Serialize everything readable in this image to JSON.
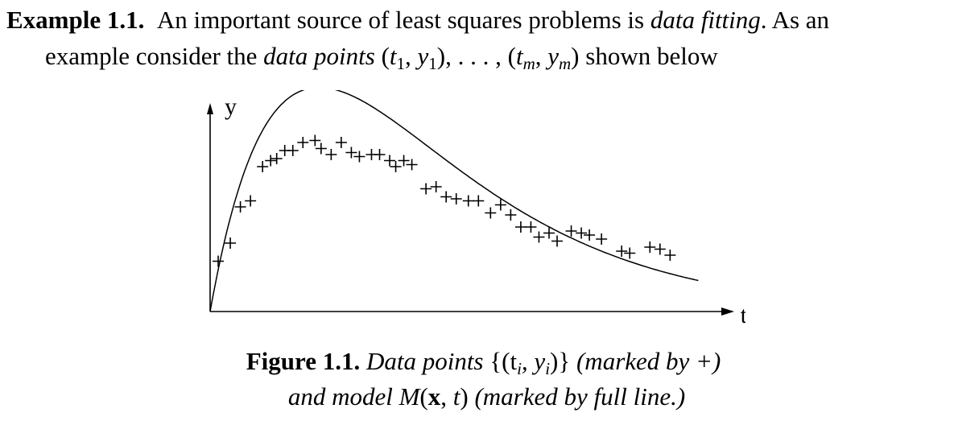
{
  "paragraph": {
    "label": "Example 1.1.",
    "text_a": "An important source of least squares problems is",
    "em_a": "data fitting",
    "text_b": ". As an",
    "text_c": "example consider the",
    "em_b": "data points",
    "text_d": "shown below",
    "math_open": "(",
    "t": "t",
    "comma": ", ",
    "y": "y",
    "close": ")",
    "sub_1": "1",
    "sub_m": "m",
    "ellipsis": ", . . . , "
  },
  "figure": {
    "caption_label": "Figure 1.1.",
    "caption_text_a": "Data points",
    "caption_math": "{(t",
    "caption_sub_i": "i",
    "caption_math_mid": ", y",
    "caption_math_end": ")}",
    "caption_text_b": "(marked by +)",
    "caption_line2_a": "and model",
    "caption_M": "M",
    "caption_x": "x",
    "caption_t": "t",
    "caption_line2_b": "(marked by full line.)"
  },
  "chart_data": {
    "type": "scatter",
    "xlabel": "t",
    "ylabel": "y",
    "grid": false,
    "marker": "+",
    "line_series": "model curve (full line)",
    "points": [
      [
        0.04,
        0.25
      ],
      [
        0.1,
        0.34
      ],
      [
        0.15,
        0.52
      ],
      [
        0.2,
        0.55
      ],
      [
        0.26,
        0.72
      ],
      [
        0.3,
        0.75
      ],
      [
        0.33,
        0.76
      ],
      [
        0.37,
        0.8
      ],
      [
        0.41,
        0.8
      ],
      [
        0.46,
        0.84
      ],
      [
        0.52,
        0.85
      ],
      [
        0.55,
        0.81
      ],
      [
        0.6,
        0.78
      ],
      [
        0.65,
        0.84
      ],
      [
        0.7,
        0.79
      ],
      [
        0.74,
        0.77
      ],
      [
        0.8,
        0.78
      ],
      [
        0.84,
        0.78
      ],
      [
        0.89,
        0.75
      ],
      [
        0.92,
        0.72
      ],
      [
        0.96,
        0.75
      ],
      [
        1.0,
        0.73
      ],
      [
        1.07,
        0.61
      ],
      [
        1.12,
        0.62
      ],
      [
        1.17,
        0.57
      ],
      [
        1.22,
        0.56
      ],
      [
        1.28,
        0.55
      ],
      [
        1.33,
        0.55
      ],
      [
        1.39,
        0.49
      ],
      [
        1.44,
        0.53
      ],
      [
        1.49,
        0.48
      ],
      [
        1.54,
        0.42
      ],
      [
        1.59,
        0.42
      ],
      [
        1.63,
        0.37
      ],
      [
        1.68,
        0.39
      ],
      [
        1.72,
        0.35
      ],
      [
        1.79,
        0.4
      ],
      [
        1.84,
        0.39
      ],
      [
        1.88,
        0.38
      ],
      [
        1.94,
        0.36
      ],
      [
        2.04,
        0.3
      ],
      [
        2.08,
        0.29
      ],
      [
        2.18,
        0.32
      ],
      [
        2.23,
        0.31
      ],
      [
        2.28,
        0.28
      ]
    ],
    "model": {
      "form": "y = a*t*exp(-b*t)",
      "a": 5.6,
      "b": 1.85
    },
    "xlim": [
      0,
      2.55
    ],
    "ylim": [
      0,
      1
    ]
  }
}
